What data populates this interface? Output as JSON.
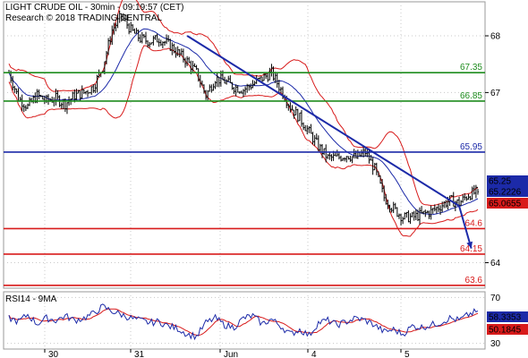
{
  "header": {
    "line1": "LIGHT CRUDE OIL - 30min - 09:19:57 (CET)",
    "line2": "Research © 2018 TRADING CENTRAL"
  },
  "chart_data": [
    {
      "type": "candlestick",
      "instrument": "LIGHT CRUDE OIL",
      "timeframe": "30min",
      "ylim": [
        63.55,
        68.6
      ],
      "y_ticks": [
        "68",
        "67",
        "64"
      ],
      "x_ticks": [
        "30",
        "31",
        "Jun",
        "4",
        "5"
      ],
      "price_path": [
        67.35,
        66.9,
        66.75,
        66.95,
        66.85,
        66.9,
        66.8,
        66.95,
        67.0,
        67.1,
        67.45,
        68.1,
        68.35,
        68.1,
        67.95,
        67.9,
        67.95,
        67.85,
        67.7,
        67.55,
        67.35,
        66.95,
        67.25,
        67.2,
        67.1,
        67.05,
        67.15,
        67.25,
        67.35,
        67.05,
        66.75,
        66.55,
        66.3,
        66.05,
        65.85,
        65.85,
        65.9,
        65.85,
        65.95,
        65.65,
        65.15,
        64.95,
        64.8,
        64.8,
        64.85,
        64.9,
        65.0,
        65.1,
        65.05,
        65.2,
        65.25
      ],
      "levels": [
        {
          "value": 67.35,
          "label": "67.35",
          "color": "#1e8c1e"
        },
        {
          "value": 66.85,
          "label": "66.85",
          "color": "#1e8c1e"
        },
        {
          "value": 65.95,
          "label": "65.95",
          "color": "#1c2aa8"
        },
        {
          "value": 64.6,
          "label": "64.6",
          "color": "#d81b1b"
        },
        {
          "value": 64.15,
          "label": "64.15",
          "color": "#d81b1b"
        },
        {
          "value": 63.6,
          "label": "63.6",
          "color": "#d81b1b"
        }
      ],
      "downtrend_line": {
        "start_x": 19,
        "start_y": 68.0,
        "end_x": 48,
        "end_y": 65.0
      },
      "projection": {
        "start_x": 48,
        "start_y": 65.0,
        "end_x": 49.3,
        "end_y": 64.25
      },
      "price_badges": [
        {
          "value": 65.25,
          "label": "65.25",
          "bg": "#1c2aa8"
        },
        {
          "value": 65.2226,
          "label": "65.2226",
          "bg": "#1c2aa8"
        },
        {
          "value": 65.0655,
          "label": "65.0655",
          "bg": "#d81b1b"
        }
      ],
      "colors": {
        "candles": "#000000",
        "moving_average": "#1c2aa8",
        "bollinger": "#d81b1b",
        "trendline": "#1c2aa8",
        "grid": "#c8c8c8"
      },
      "grid": true
    },
    {
      "type": "line",
      "title": "RSI14 - 9MA",
      "ylim": [
        25,
        75
      ],
      "y_ticks": [
        "70",
        "30"
      ],
      "rsi_path": [
        52,
        49,
        55,
        47,
        52,
        50,
        54,
        50,
        52,
        56,
        62,
        58,
        55,
        52,
        50,
        48,
        49,
        45,
        43,
        38,
        36,
        48,
        52,
        46,
        44,
        52,
        54,
        47,
        51,
        45,
        38,
        42,
        37,
        48,
        50,
        46,
        49,
        52,
        50,
        46,
        40,
        42,
        38,
        45,
        44,
        46,
        48,
        52,
        50,
        55,
        58.3
      ],
      "series": [
        {
          "name": "RSI14",
          "color": "#1c2aa8"
        },
        {
          "name": "9MA",
          "color": "#d81b1b"
        }
      ],
      "price_badges": [
        {
          "value": 58.3353,
          "label": "58.3353",
          "bg": "#1c2aa8"
        },
        {
          "value": 50.1845,
          "label": "50.1845",
          "bg": "#d81b1b"
        }
      ],
      "grid": true
    }
  ]
}
